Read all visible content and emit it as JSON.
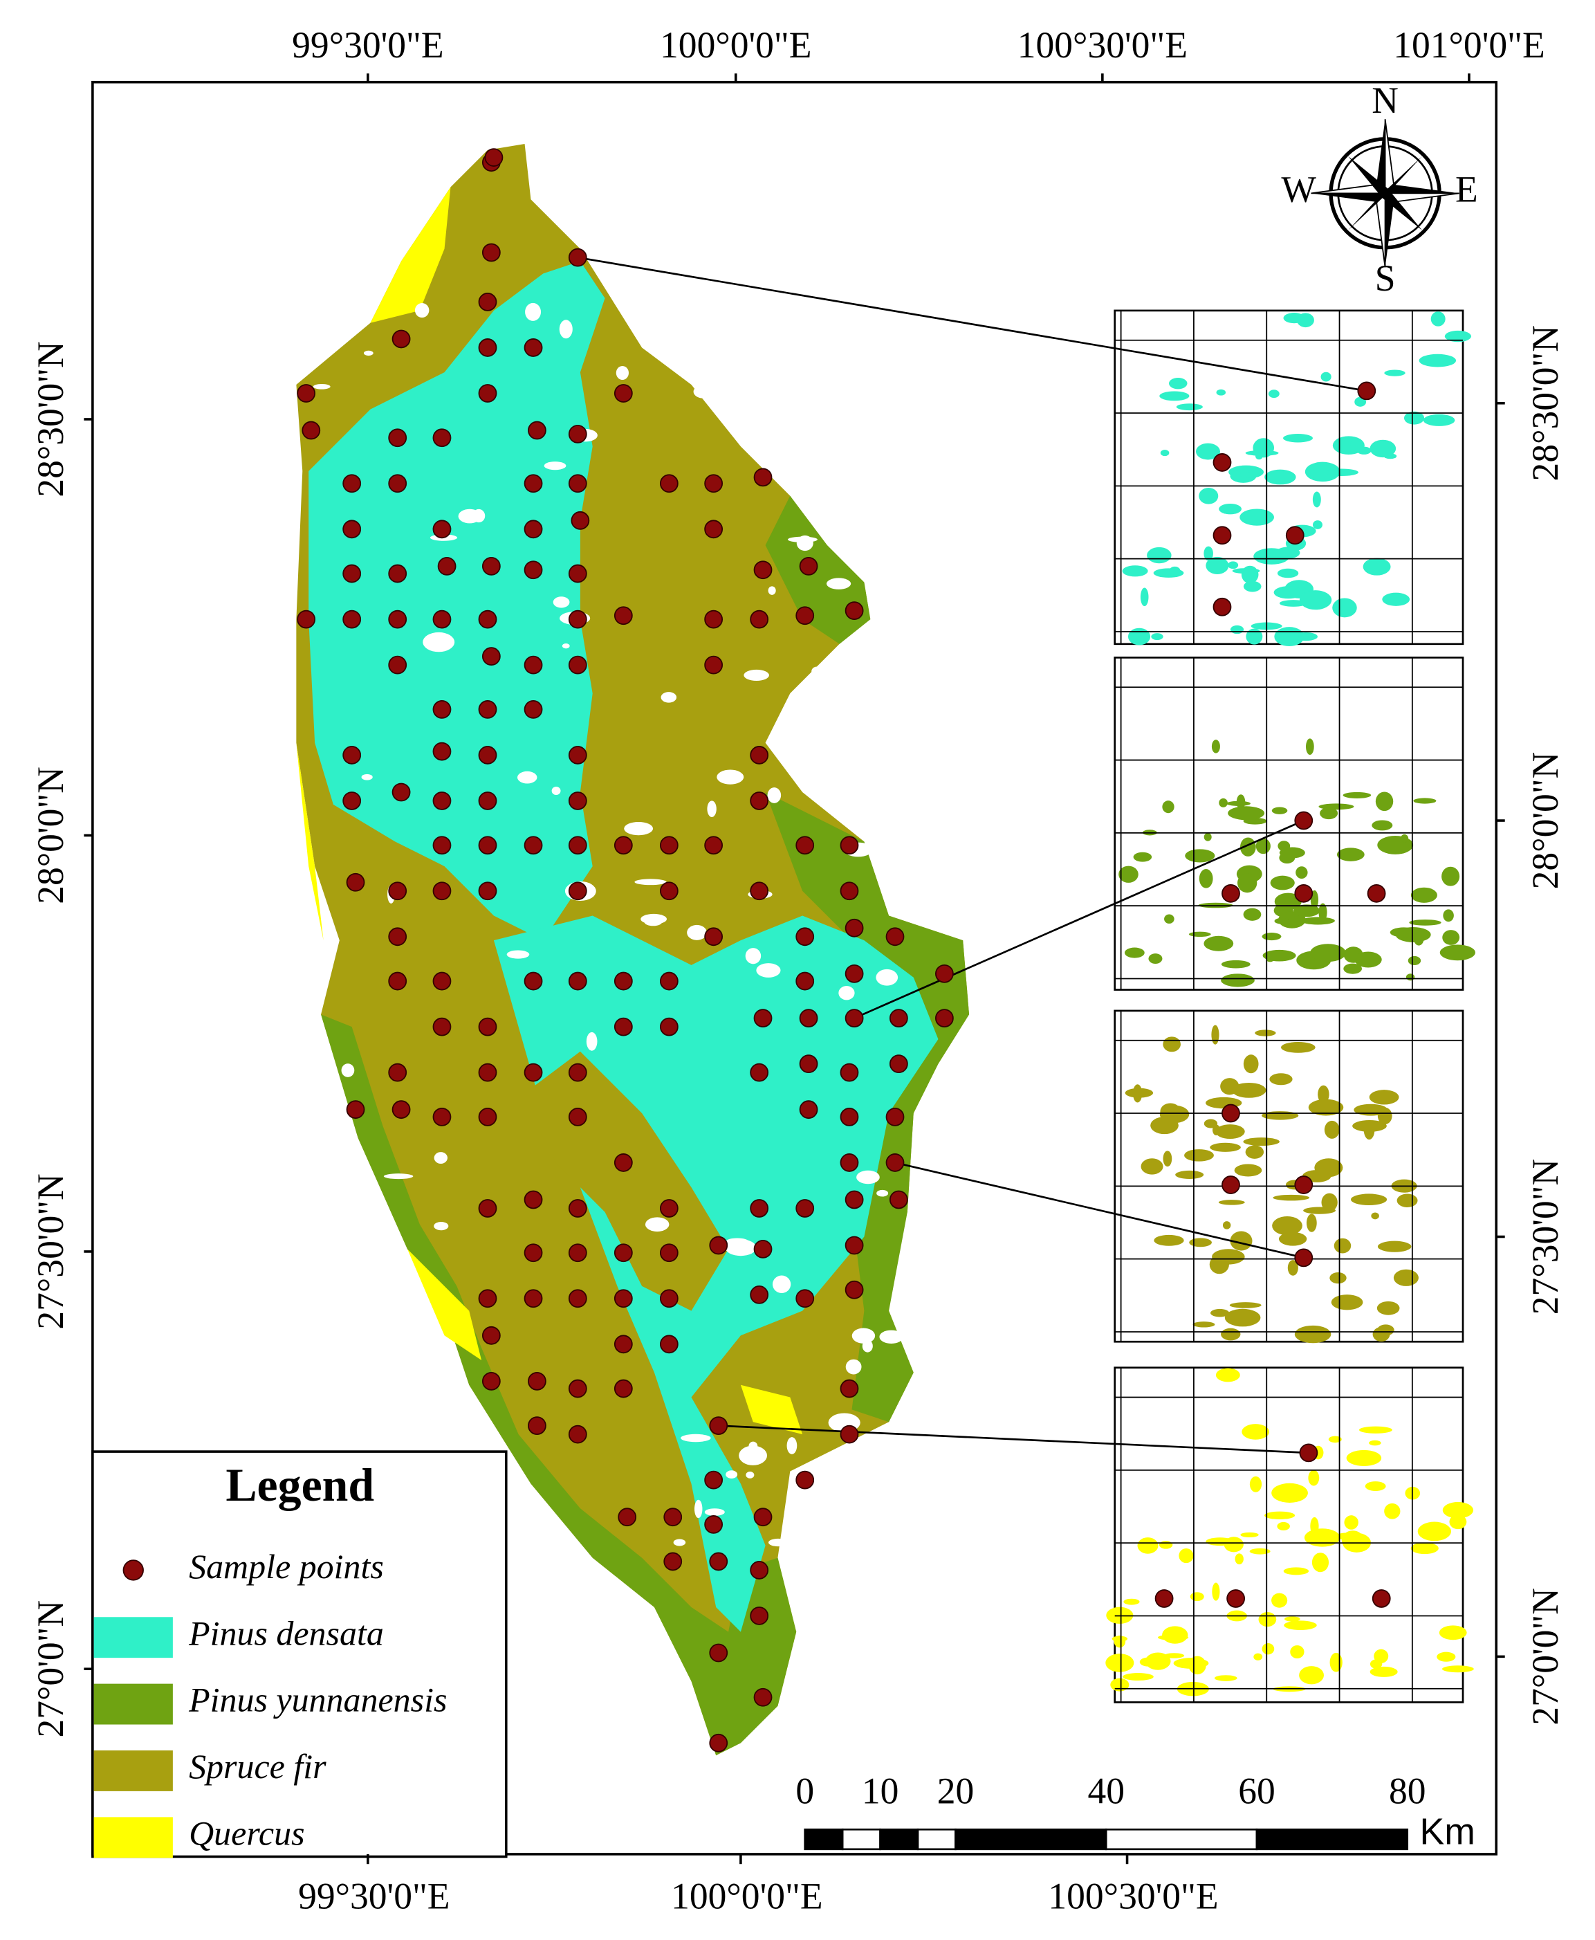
{
  "map": {
    "top_labels": [
      "99°30'0\"E",
      "100°0'0\"E",
      "100°30'0\"E",
      "101°0'0\"E"
    ],
    "bottom_labels": [
      "99°30'0\"E",
      "100°0'0\"E",
      "100°30'0\"E"
    ],
    "left_labels": [
      "28°30'0\"N",
      "28°0'0\"N",
      "27°30'0\"N",
      "27°0'0\"N"
    ],
    "right_labels": [
      "28°30'0\"N",
      "28°0'0\"N",
      "27°30'0\"N",
      "27°0'0\"N"
    ],
    "compass": {
      "n": "N",
      "s": "S",
      "e": "E",
      "w": "W"
    },
    "legend": {
      "title": "Legend",
      "items": [
        {
          "label": "Sample points",
          "color": "#8b0a0a"
        },
        {
          "label": "Pinus densata",
          "color": "#2ff0c8"
        },
        {
          "label": "Pinus yunnanensis",
          "color": "#6fa312"
        },
        {
          "label": "Spruce fir",
          "color": "#a8a010"
        },
        {
          "label": "Quercus",
          "color": "#ffff00"
        }
      ]
    },
    "scale_bar": {
      "ticks": [
        0,
        10,
        20,
        40,
        60,
        80
      ],
      "unit": "Km"
    }
  }
}
